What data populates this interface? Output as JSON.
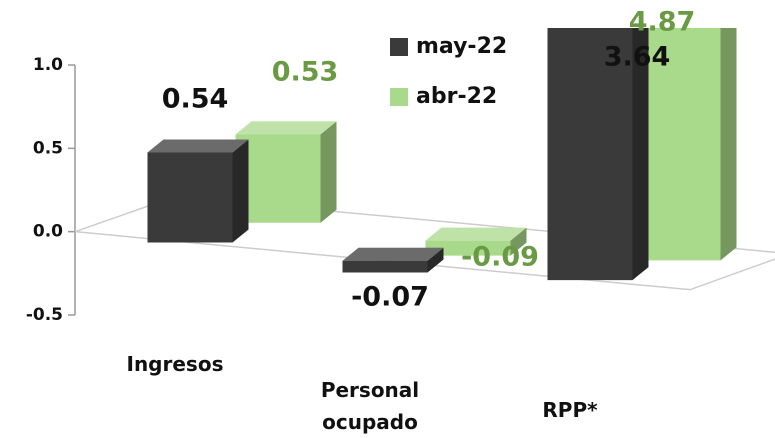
{
  "chart_data": {
    "type": "bar3d",
    "categories": [
      "Ingresos",
      "Personal ocupado",
      "RPP*"
    ],
    "series": [
      {
        "name": "may-22",
        "color": "#3a3a3a",
        "values": [
          0.54,
          -0.07,
          3.64
        ]
      },
      {
        "name": "abr-22",
        "color": "#a9d98a",
        "values": [
          0.53,
          -0.09,
          4.87
        ]
      }
    ],
    "ylim": [
      -0.5,
      1.0
    ],
    "yticks": [
      -0.5,
      {
        "value": 0,
        "label": "0.0"
      },
      0.5,
      {
        "value": 1,
        "label": "1.0"
      }
    ]
  }
}
